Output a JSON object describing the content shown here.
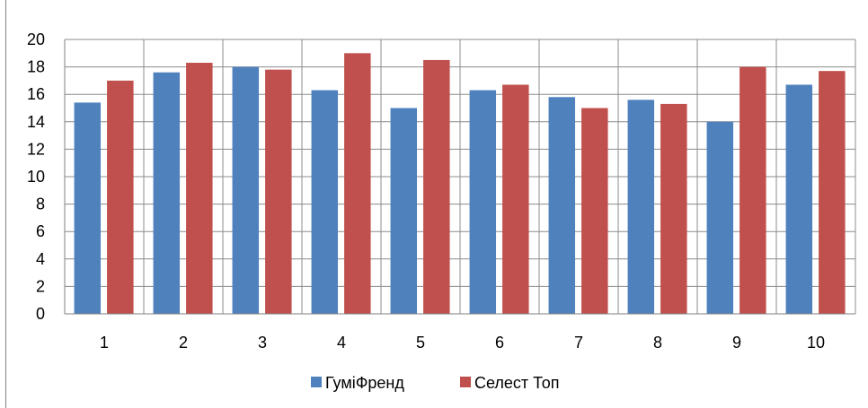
{
  "chart_data": {
    "type": "bar",
    "title": "",
    "xlabel": "",
    "ylabel": "",
    "categories": [
      "1",
      "2",
      "3",
      "4",
      "5",
      "6",
      "7",
      "8",
      "9",
      "10"
    ],
    "series": [
      {
        "name": "ГуміФренд",
        "color": "#4f81bd",
        "values": [
          15.4,
          17.6,
          18.0,
          16.3,
          15.0,
          16.3,
          15.8,
          15.6,
          14.0,
          16.7
        ]
      },
      {
        "name": "Селест Топ",
        "color": "#c0504d",
        "values": [
          17.0,
          18.3,
          17.8,
          19.0,
          18.5,
          16.7,
          15.0,
          15.3,
          18.0,
          17.7
        ]
      }
    ],
    "ylim": [
      0,
      20
    ],
    "yticks": [
      0,
      2,
      4,
      6,
      8,
      10,
      12,
      14,
      16,
      18,
      20
    ],
    "grid": true,
    "legend_position": "bottom"
  }
}
